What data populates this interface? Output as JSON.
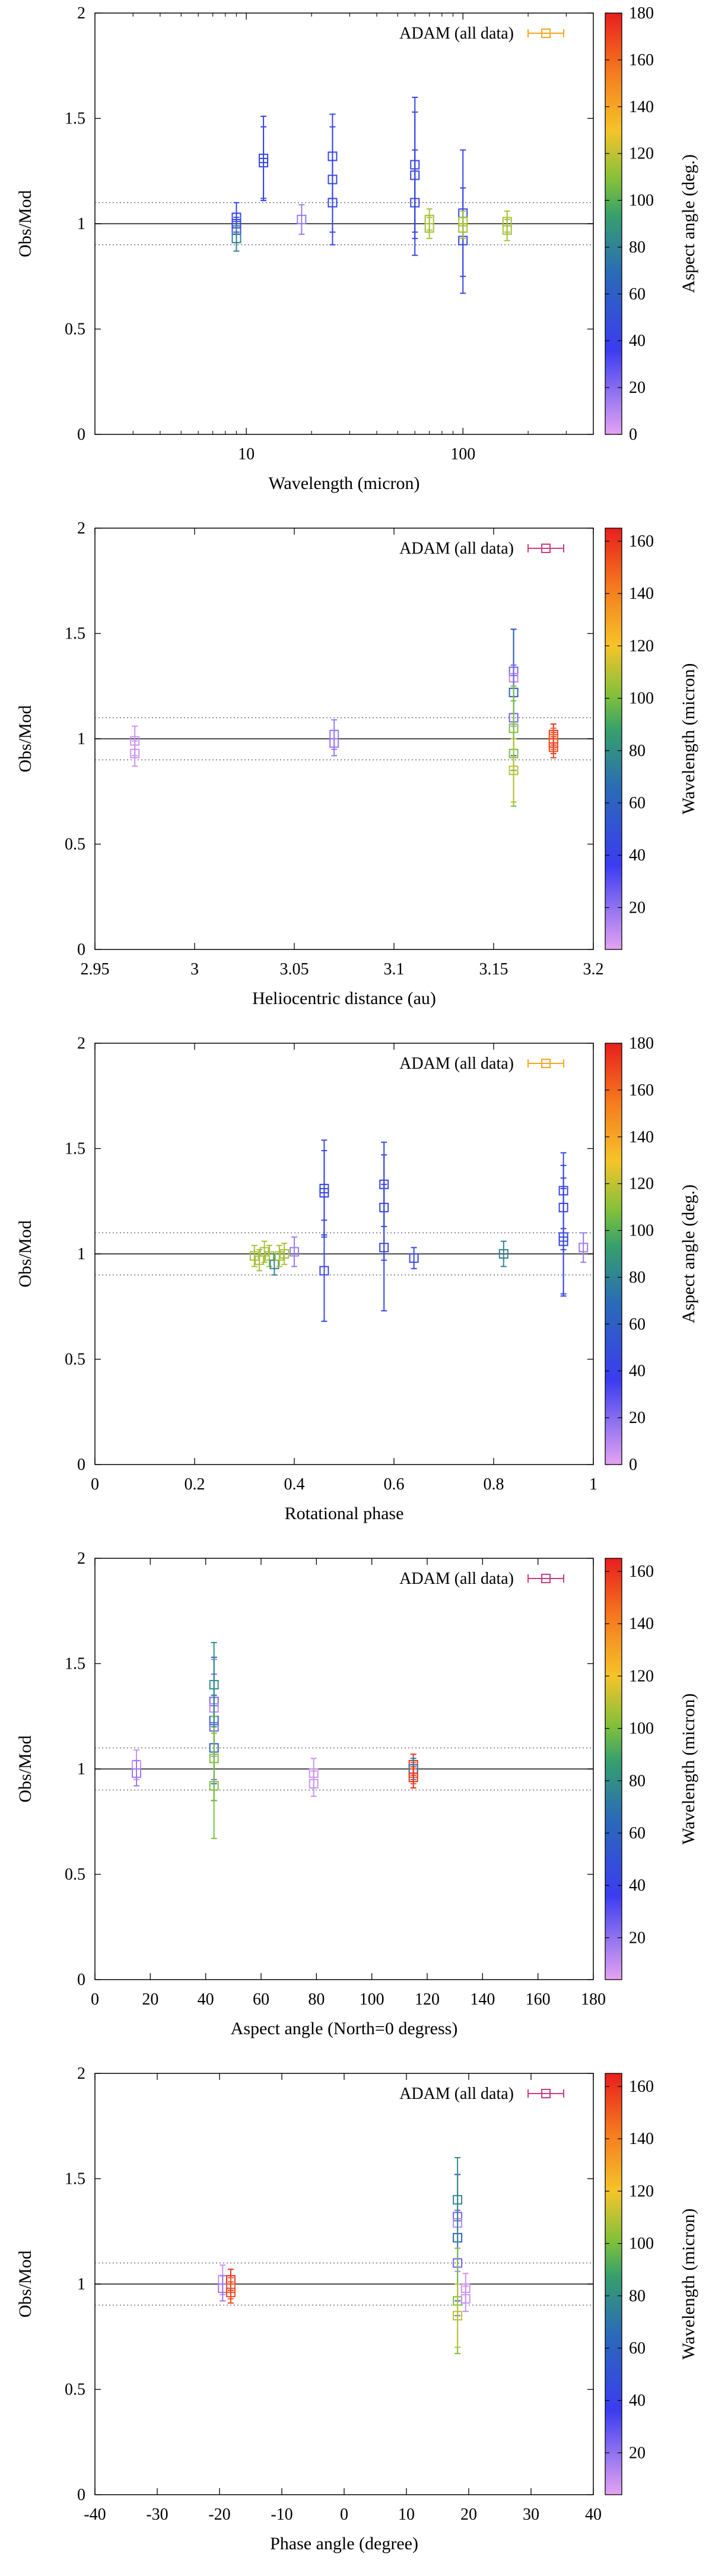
{
  "chart_data": [
    {
      "type": "scatter",
      "title": "",
      "xlabel": "Wavelength (micron)",
      "ylabel": "Obs/Mod",
      "xscale": "log",
      "xlim": [
        2,
        400
      ],
      "ylim": [
        0,
        2
      ],
      "x_ticks": [
        10,
        100
      ],
      "x_tick_labels": [
        "10",
        "100"
      ],
      "y_ticks": [
        0,
        0.5,
        1,
        1.5,
        2
      ],
      "y_tick_labels": [
        "0",
        "0.5",
        "1",
        "1.5",
        "2"
      ],
      "legend": "ADAM (all data)",
      "legend_color": "#f5a623",
      "legend_position": "top-right",
      "colorbar": {
        "label": "Aspect angle (deg.)",
        "range": [
          0,
          180
        ],
        "ticks": [
          0,
          20,
          40,
          60,
          80,
          100,
          120,
          140,
          160,
          180
        ],
        "tick_labels": [
          "0",
          "20",
          "40",
          "60",
          "80",
          "100",
          "120",
          "140",
          "160",
          "180"
        ]
      },
      "reference_lines": {
        "solid": 1.0,
        "dotted": [
          0.9,
          1.1
        ]
      },
      "points": [
        {
          "x": 9,
          "y": 1.0,
          "err": 0.05,
          "c": 43
        },
        {
          "x": 9,
          "y": 0.97,
          "err": 0.06,
          "c": 43
        },
        {
          "x": 9,
          "y": 1.03,
          "err": 0.07,
          "c": 43
        },
        {
          "x": 9,
          "y": 0.93,
          "err": 0.06,
          "c": 80
        },
        {
          "x": 12,
          "y": 1.31,
          "err": 0.2,
          "c": 43
        },
        {
          "x": 12,
          "y": 1.29,
          "err": 0.17,
          "c": 43
        },
        {
          "x": 18,
          "y": 1.02,
          "err": 0.07,
          "c": 15
        },
        {
          "x": 25,
          "y": 1.32,
          "err": 0.2,
          "c": 43
        },
        {
          "x": 25,
          "y": 1.21,
          "err": 0.25,
          "c": 43
        },
        {
          "x": 25,
          "y": 1.1,
          "err": 0.2,
          "c": 43
        },
        {
          "x": 60,
          "y": 1.28,
          "err": 0.32,
          "c": 43
        },
        {
          "x": 60,
          "y": 1.23,
          "err": 0.3,
          "c": 43
        },
        {
          "x": 60,
          "y": 1.1,
          "err": 0.25,
          "c": 43
        },
        {
          "x": 70,
          "y": 1.02,
          "err": 0.05,
          "c": 115
        },
        {
          "x": 70,
          "y": 0.98,
          "err": 0.05,
          "c": 115
        },
        {
          "x": 100,
          "y": 1.05,
          "err": 0.3,
          "c": 43
        },
        {
          "x": 100,
          "y": 0.92,
          "err": 0.25,
          "c": 43
        },
        {
          "x": 100,
          "y": 1.01,
          "err": 0.05,
          "c": 115
        },
        {
          "x": 100,
          "y": 0.98,
          "err": 0.05,
          "c": 115
        },
        {
          "x": 160,
          "y": 1.01,
          "err": 0.05,
          "c": 115
        },
        {
          "x": 160,
          "y": 0.97,
          "err": 0.05,
          "c": 115
        }
      ]
    },
    {
      "type": "scatter",
      "title": "",
      "xlabel": "Heliocentric distance (au)",
      "ylabel": "Obs/Mod",
      "xscale": "linear",
      "xlim": [
        2.95,
        3.2
      ],
      "ylim": [
        0,
        2
      ],
      "x_ticks": [
        2.95,
        3,
        3.05,
        3.1,
        3.15,
        3.2
      ],
      "x_tick_labels": [
        "2.95",
        "3",
        "3.05",
        "3.1",
        "3.15",
        "3.2"
      ],
      "y_ticks": [
        0,
        0.5,
        1,
        1.5,
        2
      ],
      "y_tick_labels": [
        "0",
        "0.5",
        "1",
        "1.5",
        "2"
      ],
      "legend": "ADAM (all data)",
      "legend_color": "#c83c82",
      "legend_position": "top-right",
      "colorbar": {
        "label": "Wavelength (micron)",
        "range": [
          4,
          165
        ],
        "ticks": [
          20,
          40,
          60,
          80,
          100,
          120,
          140,
          160
        ],
        "tick_labels": [
          "20",
          "40",
          "60",
          "80",
          "100",
          "120",
          "140",
          "160"
        ]
      },
      "reference_lines": {
        "solid": 1.0,
        "dotted": [
          0.9,
          1.1
        ]
      },
      "points": [
        {
          "x": 2.97,
          "y": 0.99,
          "err": 0.07,
          "c": 9
        },
        {
          "x": 2.97,
          "y": 0.93,
          "err": 0.06,
          "c": 9
        },
        {
          "x": 3.07,
          "y": 1.02,
          "err": 0.07,
          "c": 18
        },
        {
          "x": 3.07,
          "y": 0.98,
          "err": 0.06,
          "c": 18
        },
        {
          "x": 3.16,
          "y": 1.32,
          "err": 0.2,
          "c": 25
        },
        {
          "x": 3.16,
          "y": 1.29,
          "err": 0.23,
          "c": 12
        },
        {
          "x": 3.16,
          "y": 1.22,
          "err": 0.3,
          "c": 60
        },
        {
          "x": 3.16,
          "y": 1.1,
          "err": 0.25,
          "c": 25
        },
        {
          "x": 3.16,
          "y": 1.05,
          "err": 0.2,
          "c": 100
        },
        {
          "x": 3.16,
          "y": 0.93,
          "err": 0.25,
          "c": 100
        },
        {
          "x": 3.16,
          "y": 0.85,
          "err": 0.15,
          "c": 110
        },
        {
          "x": 3.18,
          "y": 1.02,
          "err": 0.05,
          "c": 160
        },
        {
          "x": 3.18,
          "y": 0.98,
          "err": 0.05,
          "c": 160
        },
        {
          "x": 3.18,
          "y": 1.0,
          "err": 0.05,
          "c": 150
        },
        {
          "x": 3.18,
          "y": 0.96,
          "err": 0.05,
          "c": 155
        }
      ]
    },
    {
      "type": "scatter",
      "title": "",
      "xlabel": "Rotational phase",
      "ylabel": "Obs/Mod",
      "xscale": "linear",
      "xlim": [
        0,
        1
      ],
      "ylim": [
        0,
        2
      ],
      "x_ticks": [
        0,
        0.2,
        0.4,
        0.6,
        0.8,
        1
      ],
      "x_tick_labels": [
        "0",
        "0.2",
        "0.4",
        "0.6",
        "0.8",
        "1"
      ],
      "y_ticks": [
        0,
        0.5,
        1,
        1.5,
        2
      ],
      "y_tick_labels": [
        "0",
        "0.5",
        "1",
        "1.5",
        "2"
      ],
      "legend": "ADAM (all data)",
      "legend_color": "#f5a623",
      "legend_position": "top-right",
      "colorbar": {
        "label": "Aspect angle (deg.)",
        "range": [
          0,
          180
        ],
        "ticks": [
          0,
          20,
          40,
          60,
          80,
          100,
          120,
          140,
          160,
          180
        ],
        "tick_labels": [
          "0",
          "20",
          "40",
          "60",
          "80",
          "100",
          "120",
          "140",
          "160",
          "180"
        ]
      },
      "reference_lines": {
        "solid": 1.0,
        "dotted": [
          0.9,
          1.1
        ]
      },
      "points": [
        {
          "x": 0.32,
          "y": 0.99,
          "err": 0.05,
          "c": 115
        },
        {
          "x": 0.33,
          "y": 0.97,
          "err": 0.05,
          "c": 115
        },
        {
          "x": 0.34,
          "y": 1.01,
          "err": 0.05,
          "c": 115
        },
        {
          "x": 0.35,
          "y": 0.99,
          "err": 0.05,
          "c": 115
        },
        {
          "x": 0.36,
          "y": 0.95,
          "err": 0.05,
          "c": 80
        },
        {
          "x": 0.37,
          "y": 0.99,
          "err": 0.05,
          "c": 115
        },
        {
          "x": 0.38,
          "y": 1.0,
          "err": 0.05,
          "c": 115
        },
        {
          "x": 0.4,
          "y": 1.01,
          "err": 0.07,
          "c": 15
        },
        {
          "x": 0.46,
          "y": 1.31,
          "err": 0.23,
          "c": 43
        },
        {
          "x": 0.46,
          "y": 1.29,
          "err": 0.2,
          "c": 43
        },
        {
          "x": 0.46,
          "y": 0.92,
          "err": 0.24,
          "c": 43
        },
        {
          "x": 0.58,
          "y": 1.33,
          "err": 0.2,
          "c": 43
        },
        {
          "x": 0.58,
          "y": 1.22,
          "err": 0.25,
          "c": 43
        },
        {
          "x": 0.58,
          "y": 1.03,
          "err": 0.3,
          "c": 43
        },
        {
          "x": 0.64,
          "y": 0.98,
          "err": 0.05,
          "c": 43
        },
        {
          "x": 0.82,
          "y": 1.0,
          "err": 0.06,
          "c": 80
        },
        {
          "x": 0.94,
          "y": 1.3,
          "err": 0.18,
          "c": 43
        },
        {
          "x": 0.94,
          "y": 1.22,
          "err": 0.2,
          "c": 43
        },
        {
          "x": 0.94,
          "y": 1.08,
          "err": 0.28,
          "c": 43
        },
        {
          "x": 0.94,
          "y": 1.06,
          "err": 0.25,
          "c": 43
        },
        {
          "x": 0.98,
          "y": 1.03,
          "err": 0.07,
          "c": 15
        }
      ]
    },
    {
      "type": "scatter",
      "title": "",
      "xlabel": "Aspect angle (North=0 degress)",
      "ylabel": "Obs/Mod",
      "xscale": "linear",
      "xlim": [
        0,
        180
      ],
      "ylim": [
        0,
        2
      ],
      "x_ticks": [
        0,
        20,
        40,
        60,
        80,
        100,
        120,
        140,
        160,
        180
      ],
      "x_tick_labels": [
        "0",
        "20",
        "40",
        "60",
        "80",
        "100",
        "120",
        "140",
        "160",
        "180"
      ],
      "y_ticks": [
        0,
        0.5,
        1,
        1.5,
        2
      ],
      "y_tick_labels": [
        "0",
        "0.5",
        "1",
        "1.5",
        "2"
      ],
      "legend": "ADAM (all data)",
      "legend_color": "#c83c82",
      "legend_position": "top-right",
      "colorbar": {
        "label": "Wavelength (micron)",
        "range": [
          4,
          165
        ],
        "ticks": [
          20,
          40,
          60,
          80,
          100,
          120,
          140,
          160
        ],
        "tick_labels": [
          "20",
          "40",
          "60",
          "80",
          "100",
          "120",
          "140",
          "160"
        ]
      },
      "reference_lines": {
        "solid": 1.0,
        "dotted": [
          0.9,
          1.1
        ]
      },
      "points": [
        {
          "x": 15,
          "y": 1.02,
          "err": 0.07,
          "c": 9
        },
        {
          "x": 15,
          "y": 0.98,
          "err": 0.06,
          "c": 18
        },
        {
          "x": 43,
          "y": 1.32,
          "err": 0.2,
          "c": 25
        },
        {
          "x": 43,
          "y": 1.29,
          "err": 0.23,
          "c": 12
        },
        {
          "x": 43,
          "y": 1.23,
          "err": 0.3,
          "c": 60
        },
        {
          "x": 43,
          "y": 1.2,
          "err": 0.25,
          "c": 25
        },
        {
          "x": 43,
          "y": 1.1,
          "err": 0.25,
          "c": 60
        },
        {
          "x": 43,
          "y": 1.05,
          "err": 0.2,
          "c": 100
        },
        {
          "x": 43,
          "y": 0.92,
          "err": 0.25,
          "c": 100
        },
        {
          "x": 43,
          "y": 1.4,
          "err": 0.2,
          "c": 80
        },
        {
          "x": 79,
          "y": 0.98,
          "err": 0.07,
          "c": 9
        },
        {
          "x": 79,
          "y": 0.93,
          "err": 0.06,
          "c": 9
        },
        {
          "x": 115,
          "y": 1.02,
          "err": 0.05,
          "c": 160
        },
        {
          "x": 115,
          "y": 0.98,
          "err": 0.05,
          "c": 150
        },
        {
          "x": 115,
          "y": 1.0,
          "err": 0.05,
          "c": 70
        },
        {
          "x": 115,
          "y": 0.96,
          "err": 0.05,
          "c": 160
        }
      ]
    },
    {
      "type": "scatter",
      "title": "",
      "xlabel": "Phase angle (degree)",
      "ylabel": "Obs/Mod",
      "xscale": "linear",
      "xlim": [
        -40,
        40
      ],
      "ylim": [
        0,
        2
      ],
      "x_ticks": [
        -40,
        -30,
        -20,
        -10,
        0,
        10,
        20,
        30,
        40
      ],
      "x_tick_labels": [
        "-40",
        "-30",
        "-20",
        "-10",
        "0",
        "10",
        "20",
        "30",
        "40"
      ],
      "y_ticks": [
        0,
        0.5,
        1,
        1.5,
        2
      ],
      "y_tick_labels": [
        "0",
        "0.5",
        "1",
        "1.5",
        "2"
      ],
      "legend": "ADAM (all data)",
      "legend_color": "#c83c82",
      "legend_position": "top-right",
      "colorbar": {
        "label": "Wavelength (micron)",
        "range": [
          4,
          165
        ],
        "ticks": [
          20,
          40,
          60,
          80,
          100,
          120,
          140,
          160
        ],
        "tick_labels": [
          "20",
          "40",
          "60",
          "80",
          "100",
          "120",
          "140",
          "160"
        ]
      },
      "reference_lines": {
        "solid": 1.0,
        "dotted": [
          0.9,
          1.1
        ]
      },
      "points": [
        {
          "x": -19.5,
          "y": 1.02,
          "err": 0.07,
          "c": 9
        },
        {
          "x": -19.5,
          "y": 0.98,
          "err": 0.06,
          "c": 18
        },
        {
          "x": -18.2,
          "y": 1.02,
          "err": 0.05,
          "c": 160
        },
        {
          "x": -18.2,
          "y": 0.98,
          "err": 0.05,
          "c": 150
        },
        {
          "x": -18.2,
          "y": 0.96,
          "err": 0.05,
          "c": 155
        },
        {
          "x": 18.2,
          "y": 1.32,
          "err": 0.2,
          "c": 25
        },
        {
          "x": 18.2,
          "y": 1.29,
          "err": 0.23,
          "c": 12
        },
        {
          "x": 18.2,
          "y": 1.22,
          "err": 0.3,
          "c": 60
        },
        {
          "x": 18.2,
          "y": 1.1,
          "err": 0.25,
          "c": 25
        },
        {
          "x": 18.2,
          "y": 1.4,
          "err": 0.2,
          "c": 80
        },
        {
          "x": 18.2,
          "y": 0.92,
          "err": 0.25,
          "c": 100
        },
        {
          "x": 18.2,
          "y": 0.85,
          "err": 0.15,
          "c": 110
        },
        {
          "x": 19.5,
          "y": 0.98,
          "err": 0.07,
          "c": 9
        },
        {
          "x": 19.5,
          "y": 0.93,
          "err": 0.06,
          "c": 9
        }
      ]
    }
  ]
}
